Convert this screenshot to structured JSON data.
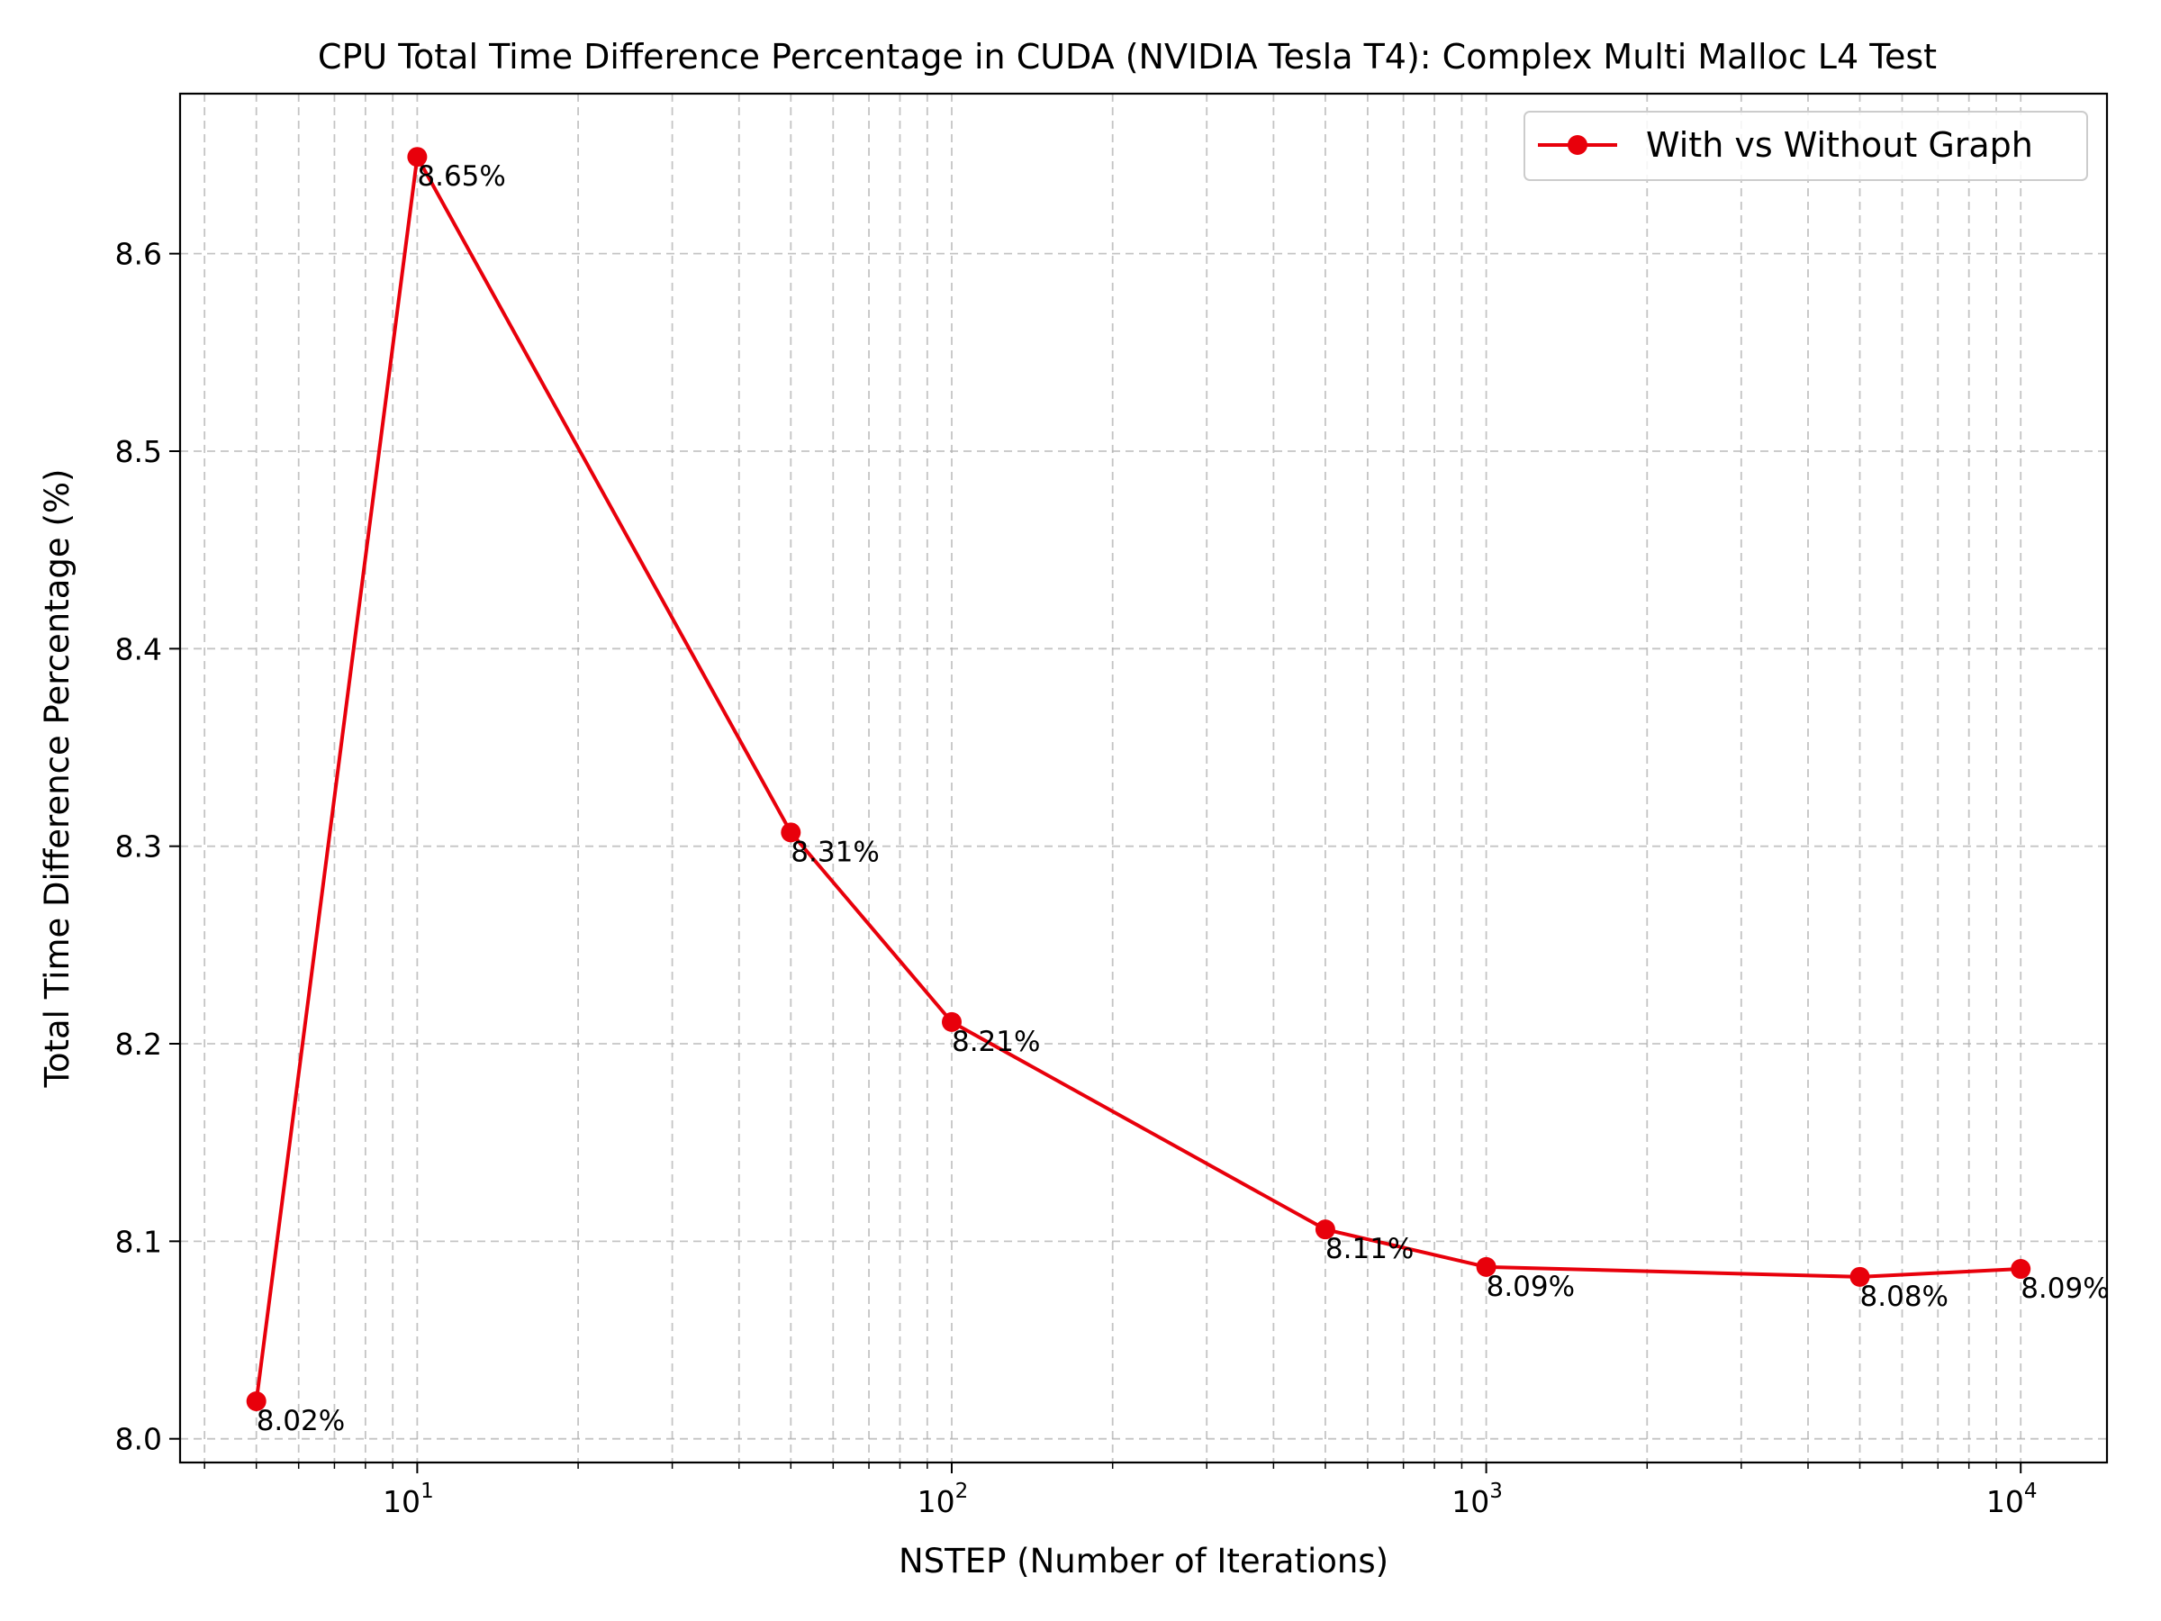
{
  "chart_data": {
    "type": "line",
    "title": "CPU Total Time Difference Percentage in CUDA (NVIDIA Tesla T4): Complex Multi Malloc L4 Test",
    "xlabel": "NSTEP (Number of Iterations)",
    "ylabel": "Total Time Difference Percentage (%)",
    "xscale": "log",
    "xlim": [
      3.6,
      14500
    ],
    "ylim": [
      7.988,
      8.681
    ],
    "x_ticks": [
      {
        "value": 10,
        "base": "10",
        "exp": "1"
      },
      {
        "value": 100,
        "base": "10",
        "exp": "2"
      },
      {
        "value": 1000,
        "base": "10",
        "exp": "3"
      },
      {
        "value": 10000,
        "base": "10",
        "exp": "4"
      }
    ],
    "y_ticks": [
      "8.0",
      "8.1",
      "8.2",
      "8.3",
      "8.4",
      "8.5",
      "8.6"
    ],
    "grid": true,
    "legend_position": "top-right",
    "series": [
      {
        "name": "With vs Without Graph",
        "color": "#e8000b",
        "marker": "circle",
        "x": [
          5,
          10,
          50,
          100,
          500,
          1000,
          5000,
          10000
        ],
        "y": [
          8.019,
          8.649,
          8.307,
          8.211,
          8.106,
          8.087,
          8.082,
          8.086
        ],
        "labels": [
          "8.02%",
          "8.65%",
          "8.31%",
          "8.21%",
          "8.11%",
          "8.09%",
          "8.08%",
          "8.09%"
        ]
      }
    ]
  }
}
